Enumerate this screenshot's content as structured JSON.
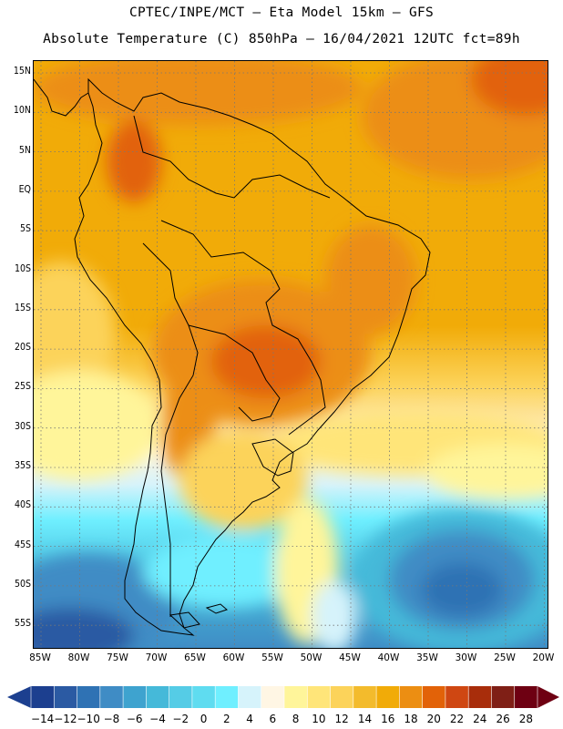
{
  "header": {
    "line1": "CPTEC/INPE/MCT –  Eta Model 15km – GFS",
    "line2": "Absolute Temperature (C) 850hPa – 16/04/2021 12UTC fct=89h"
  },
  "map": {
    "lat_labels": [
      "15N",
      "10N",
      "5N",
      "EQ",
      "5S",
      "10S",
      "15S",
      "20S",
      "25S",
      "30S",
      "35S",
      "40S",
      "45S",
      "50S",
      "55S"
    ],
    "lon_labels": [
      "85W",
      "80W",
      "75W",
      "70W",
      "65W",
      "60W",
      "55W",
      "50W",
      "45W",
      "40W",
      "35W",
      "30W",
      "25W",
      "20W"
    ],
    "grid": "dotted"
  },
  "colorbar": {
    "labels": [
      "-14",
      "-12",
      "-10",
      "-8",
      "-6",
      "-4",
      "-2",
      "0",
      "2",
      "4",
      "6",
      "8",
      "10",
      "12",
      "14",
      "16",
      "18",
      "20",
      "22",
      "24",
      "26",
      "28"
    ],
    "colors": [
      "#1c3f8f",
      "#2b5aa3",
      "#2f72b4",
      "#3f8cc5",
      "#3ea3cf",
      "#45b9d9",
      "#55cce6",
      "#5fdcf0",
      "#6fefff",
      "#d6f3fb",
      "#fff6e4",
      "#fff59a",
      "#ffe579",
      "#fcd35a",
      "#f3bb2c",
      "#f1ab08",
      "#ec8e12",
      "#e26208",
      "#cf4712",
      "#a82d0b",
      "#7f1f16",
      "#6e0012"
    ]
  }
}
